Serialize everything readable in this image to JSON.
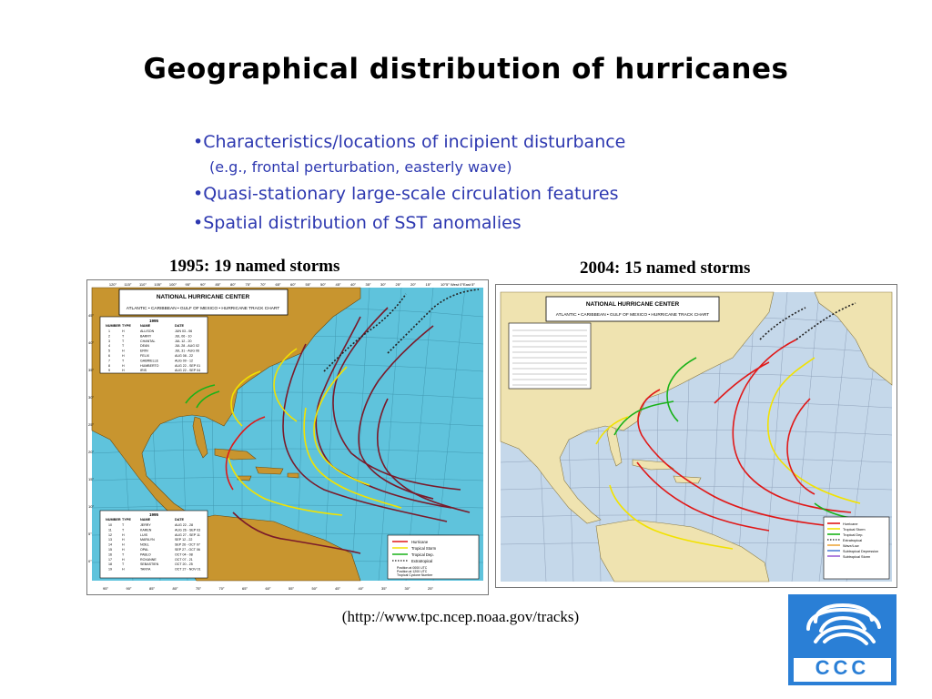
{
  "title": "Geographical distribution of hurricanes",
  "bullets": [
    "•Characteristics/locations of incipient disturbance",
    "(e.g., frontal perturbation, easterly wave)",
    "•Quasi-stationary large-scale circulation features",
    "•Spatial distribution of SST anomalies"
  ],
  "maps": {
    "left": {
      "caption": "1995: 19 named storms",
      "header_line1": "NATIONAL HURRICANE CENTER",
      "header_line2": "ATLANTIC • CARIBBEAN • GULF OF MEXICO • HURRICANE TRACK CHART",
      "year_label": "1995",
      "table_headers": [
        "NUMBER",
        "TYPE",
        "NAME",
        "DATE"
      ],
      "table_top": [
        [
          "1",
          "H",
          "ALLISON",
          "JUN 03 - 06"
        ],
        [
          "2",
          "T",
          "BARRY",
          "JUL 06 - 10"
        ],
        [
          "3",
          "T",
          "CHANTAL",
          "JUL 12 - 20"
        ],
        [
          "4",
          "T",
          "DEAN",
          "JUL 28 - AUG 02"
        ],
        [
          "5",
          "H",
          "ERIN",
          "JUL 31 - AUG 06"
        ],
        [
          "6",
          "H",
          "FELIX",
          "AUG 08 - 22"
        ],
        [
          "7",
          "T",
          "GABRIELLE",
          "AUG 09 - 12"
        ],
        [
          "8",
          "H",
          "HUMBERTO",
          "AUG 22 - SEP 01"
        ],
        [
          "9",
          "H",
          "IRIS",
          "AUG 22 - SEP 04"
        ]
      ],
      "table_bottom": [
        [
          "10",
          "T",
          "JERRY",
          "AUG 22 - 28"
        ],
        [
          "11",
          "T",
          "KAREN",
          "AUG 26 - SEP 03"
        ],
        [
          "12",
          "H",
          "LUIS",
          "AUG 27 - SEP 11"
        ],
        [
          "13",
          "H",
          "MARILYN",
          "SEP 12 - 22"
        ],
        [
          "14",
          "H",
          "NOEL",
          "SEP 26 - OCT 07"
        ],
        [
          "15",
          "H",
          "OPAL",
          "SEP 27 - OCT 06"
        ],
        [
          "16",
          "T",
          "PABLO",
          "OCT 04 - 08"
        ],
        [
          "17",
          "H",
          "ROXANNE",
          "OCT 07 - 21"
        ],
        [
          "18",
          "T",
          "SEBASTIEN",
          "OCT 20 - 25"
        ],
        [
          "19",
          "H",
          "TANYA",
          "OCT 27 - NOV 01"
        ]
      ],
      "legend": [
        "Hurricane",
        "Tropical Storm",
        "Tropical Dep.",
        "Extratropical"
      ],
      "legend_notes": [
        "Position at 0000 UTC",
        "Position at 1200 UTC",
        "Tropical Cyclone Number"
      ],
      "top_lon": [
        "120°",
        "115°",
        "110°",
        "105°",
        "100°",
        "95°",
        "90°",
        "85°",
        "80°",
        "75°",
        "70°",
        "65°",
        "60°",
        "55°",
        "50°",
        "45°",
        "40°",
        "35°",
        "30°",
        "25°",
        "20°",
        "15°",
        "10°",
        "5° West 0°East",
        "5°"
      ],
      "bottom_lon": [
        "95°",
        "90°",
        "85°",
        "80°",
        "75°",
        "70°",
        "65°",
        "60°",
        "55°",
        "50°",
        "45°",
        "40°",
        "35°",
        "30°",
        "25°"
      ],
      "left_lat": [
        "45°",
        "40°",
        "35°",
        "30°",
        "25°",
        "20°",
        "15°",
        "10°",
        "5°",
        "0°"
      ]
    },
    "right": {
      "caption": "2004: 15 named storms",
      "header_line1": "NATIONAL HURRICANE CENTER",
      "header_line2": "ATLANTIC • CARIBBEAN • GULF OF MEXICO • HURRICANE TRACK CHART",
      "legend": [
        "Hurricane",
        "Tropical Storm",
        "Tropical Dep.",
        "Extratropical",
        "Wave/Low",
        "Subtropical Depression",
        "Subtropical Storm"
      ]
    }
  },
  "source": "(http://www.tpc.ncep.noaa.gov/tracks)",
  "logo": {
    "text": "CCC",
    "color": "#2a7fd6"
  },
  "colors": {
    "bullet_text": "#2d38b0",
    "ocean_left": "#5fc3dc",
    "land_left": "#c8952f",
    "ocean_right": "#c5d8ea",
    "land_right": "#efe3b0",
    "hurricane": "#e01818",
    "tropical_storm": "#f2e200",
    "tropical_dep": "#19b219",
    "extratropical": "#222222"
  }
}
